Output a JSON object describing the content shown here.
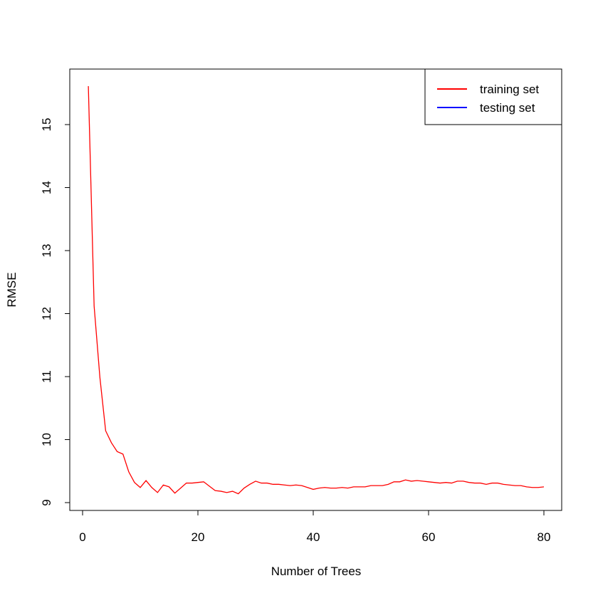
{
  "chart_data": {
    "type": "line",
    "title": "",
    "xlabel": "Number of Trees",
    "ylabel": "RMSE",
    "xlim": [
      0,
      80
    ],
    "ylim": [
      9,
      15
    ],
    "x_ticks": [
      "0",
      "20",
      "40",
      "60",
      "80"
    ],
    "y_ticks": [
      "9",
      "10",
      "11",
      "12",
      "13",
      "14",
      "15"
    ],
    "grid": false,
    "legend": {
      "placement": "top-right",
      "entries": [
        {
          "label": "training set",
          "color": "#ff0000"
        },
        {
          "label": "testing set",
          "color": "#0000ff"
        }
      ]
    },
    "series": [
      {
        "name": "training set",
        "color": "#ff0000",
        "x": [
          1,
          2,
          3,
          4,
          5,
          6,
          7,
          8,
          9,
          10,
          11,
          12,
          13,
          14,
          15,
          16,
          17,
          18,
          19,
          20,
          21,
          22,
          23,
          24,
          25,
          26,
          27,
          28,
          29,
          30,
          31,
          32,
          33,
          34,
          35,
          36,
          37,
          38,
          39,
          40,
          41,
          42,
          43,
          44,
          45,
          46,
          47,
          48,
          49,
          50,
          51,
          52,
          53,
          54,
          55,
          56,
          57,
          58,
          59,
          60,
          61,
          62,
          63,
          64,
          65,
          66,
          67,
          68,
          69,
          70,
          71,
          72,
          73,
          74,
          75,
          76,
          77,
          78,
          79,
          80
        ],
        "values": [
          15.61,
          12.12,
          10.99,
          10.14,
          9.95,
          9.81,
          9.77,
          9.49,
          9.32,
          9.24,
          9.35,
          9.24,
          9.16,
          9.28,
          9.25,
          9.15,
          9.23,
          9.31,
          9.31,
          9.32,
          9.33,
          9.26,
          9.19,
          9.18,
          9.16,
          9.18,
          9.14,
          9.23,
          9.29,
          9.34,
          9.31,
          9.31,
          9.29,
          9.29,
          9.28,
          9.27,
          9.28,
          9.27,
          9.24,
          9.21,
          9.23,
          9.24,
          9.23,
          9.23,
          9.24,
          9.23,
          9.25,
          9.25,
          9.25,
          9.27,
          9.27,
          9.27,
          9.29,
          9.33,
          9.33,
          9.36,
          9.34,
          9.35,
          9.34,
          9.33,
          9.32,
          9.31,
          9.32,
          9.31,
          9.34,
          9.34,
          9.32,
          9.31,
          9.31,
          9.29,
          9.31,
          9.31,
          9.29,
          9.28,
          9.27,
          9.27,
          9.25,
          9.24,
          9.24,
          9.25
        ]
      },
      {
        "name": "testing set",
        "color": "#0000ff",
        "x": [],
        "values": []
      }
    ]
  }
}
